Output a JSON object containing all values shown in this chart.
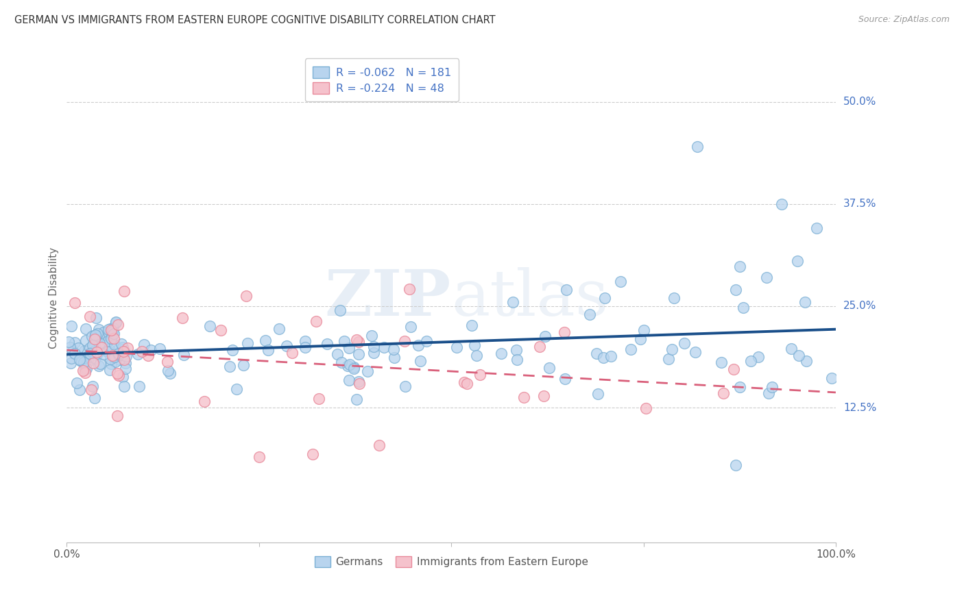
{
  "title": "GERMAN VS IMMIGRANTS FROM EASTERN EUROPE COGNITIVE DISABILITY CORRELATION CHART",
  "source": "Source: ZipAtlas.com",
  "ylabel": "Cognitive Disability",
  "xlim": [
    0.0,
    1.0
  ],
  "ylim": [
    -0.04,
    0.56
  ],
  "y_tick_labels": [
    "12.5%",
    "25.0%",
    "37.5%",
    "50.0%"
  ],
  "y_tick_values": [
    0.125,
    0.25,
    0.375,
    0.5
  ],
  "watermark_zip": "ZIP",
  "watermark_atlas": "atlas",
  "legend_label_german": "Germans",
  "legend_label_immigrant": "Immigrants from Eastern Europe",
  "blue_scatter_face": "#b8d4ee",
  "blue_scatter_edge": "#7aafd4",
  "pink_scatter_face": "#f5c2cc",
  "pink_scatter_edge": "#e8899a",
  "blue_line_color": "#1a4f8a",
  "pink_line_color": "#d95f7a",
  "background_color": "#ffffff",
  "grid_color": "#cccccc",
  "title_color": "#333333",
  "axis_label_color": "#666666",
  "right_tick_color": "#4472c4",
  "legend_text_color": "#4472c4",
  "R_german": -0.062,
  "N_german": 181,
  "R_immigrant": -0.224,
  "N_immigrant": 48,
  "seed": 7
}
